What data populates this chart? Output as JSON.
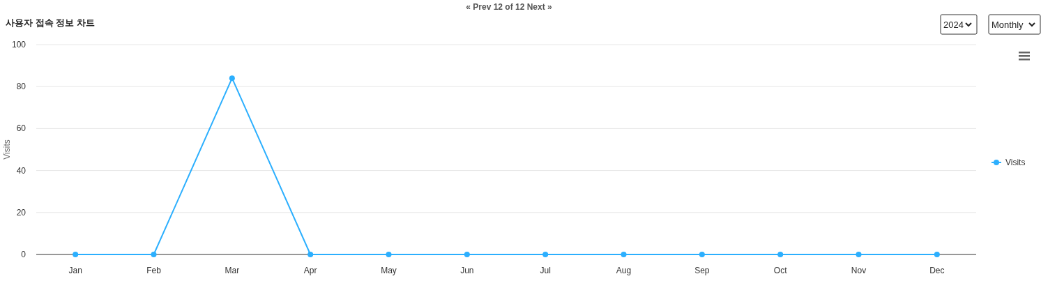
{
  "chart_data": {
    "type": "line",
    "title": "사용자 접속 정보 차트",
    "ylabel": "Visits",
    "categories": [
      "Jan",
      "Feb",
      "Mar",
      "Apr",
      "May",
      "Jun",
      "Jul",
      "Aug",
      "Sep",
      "Oct",
      "Nov",
      "Dec"
    ],
    "series": [
      {
        "name": "Visits",
        "color": "#2caffe",
        "values": [
          0,
          0,
          84,
          0,
          0,
          0,
          0,
          0,
          0,
          0,
          0,
          0
        ]
      }
    ],
    "ylim": [
      0,
      100
    ],
    "yticks": [
      0,
      20,
      40,
      60,
      80,
      100
    ],
    "grid": "y",
    "legend": "right",
    "marker": "circle",
    "line_style": "solid",
    "annotations": [
      "« Prev 12 of 12 Next »",
      "2024",
      "Monthly"
    ]
  }
}
